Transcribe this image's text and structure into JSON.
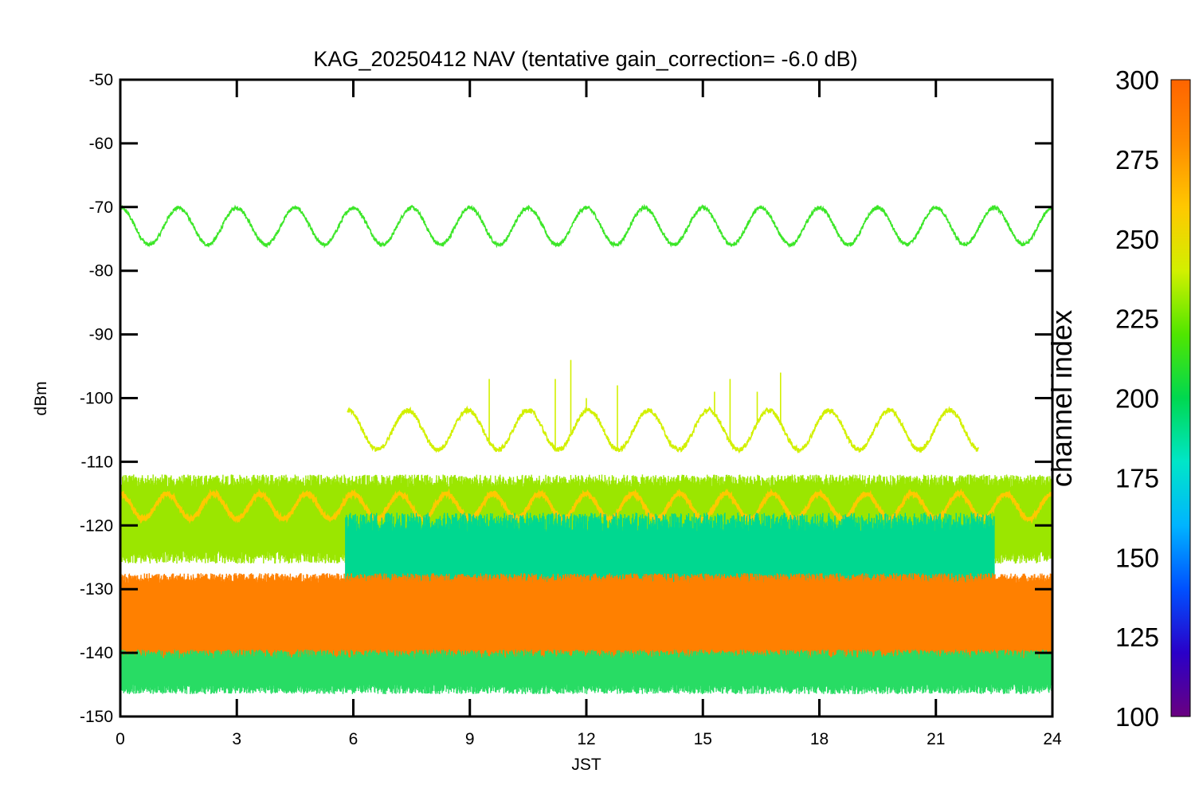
{
  "chart_data": {
    "type": "line",
    "title": "KAG_20250412 NAV (tentative gain_correction= -6.0 dB)",
    "xlabel": "JST",
    "ylabel": "dBm",
    "xlim": [
      0,
      24
    ],
    "ylim": [
      -150,
      -50
    ],
    "xticks": [
      0,
      3,
      6,
      9,
      12,
      15,
      18,
      21,
      24
    ],
    "yticks": [
      -50,
      -60,
      -70,
      -80,
      -90,
      -100,
      -110,
      -120,
      -130,
      -140,
      -150
    ],
    "grid": false,
    "colorbar": {
      "label": "channel index",
      "range": [
        100,
        300
      ],
      "ticks": [
        100,
        125,
        150,
        175,
        200,
        225,
        250,
        275,
        300
      ],
      "colormap": [
        "#6a0080",
        "#2a00c8",
        "#0050ff",
        "#00b4ff",
        "#00e6c8",
        "#00d850",
        "#50e600",
        "#d2f000",
        "#ffc800",
        "#ff8c00",
        "#ff6400"
      ]
    },
    "series": [
      {
        "color": "#3ce628",
        "shape": "sinusoid",
        "x_range": [
          0,
          24
        ],
        "center": -73,
        "amplitude": 2.9,
        "period_hours": 1.5,
        "noise": 0.3
      },
      {
        "color": "#d2f000",
        "shape": "sinusoid",
        "x_range": [
          5.85,
          22.1
        ],
        "center": -105,
        "amplitude": 3.1,
        "period_hours": 1.55,
        "noise": 0.4,
        "spikes": [
          [
            9.5,
            -97
          ],
          [
            11.2,
            -97
          ],
          [
            11.6,
            -94
          ],
          [
            12.0,
            -100
          ],
          [
            12.8,
            -98
          ],
          [
            15.3,
            -99
          ],
          [
            15.7,
            -97
          ],
          [
            16.4,
            -99
          ],
          [
            17.0,
            -96
          ]
        ]
      },
      {
        "color": "#9be600",
        "shape": "band",
        "x_range": [
          0,
          24
        ],
        "low": -124,
        "high": -114,
        "noise": 2.0
      },
      {
        "color": "#ffc800",
        "shape": "sinusoid",
        "x_range": [
          0,
          24
        ],
        "center": -117,
        "amplitude": 2.0,
        "period_hours": 1.2,
        "noise": 0.3
      },
      {
        "color": "#00d890",
        "shape": "band",
        "x_range": [
          5.8,
          22.5
        ],
        "low": -131,
        "high": -121,
        "noise": 3.0
      },
      {
        "color": "#ff8000",
        "shape": "band",
        "x_range": [
          0,
          24
        ],
        "low": -142,
        "high": -129,
        "noise": 1.5
      },
      {
        "color": "#28dc64",
        "shape": "band",
        "x_range": [
          0,
          24
        ],
        "low": -145,
        "high": -141,
        "noise": 1.5
      }
    ]
  }
}
